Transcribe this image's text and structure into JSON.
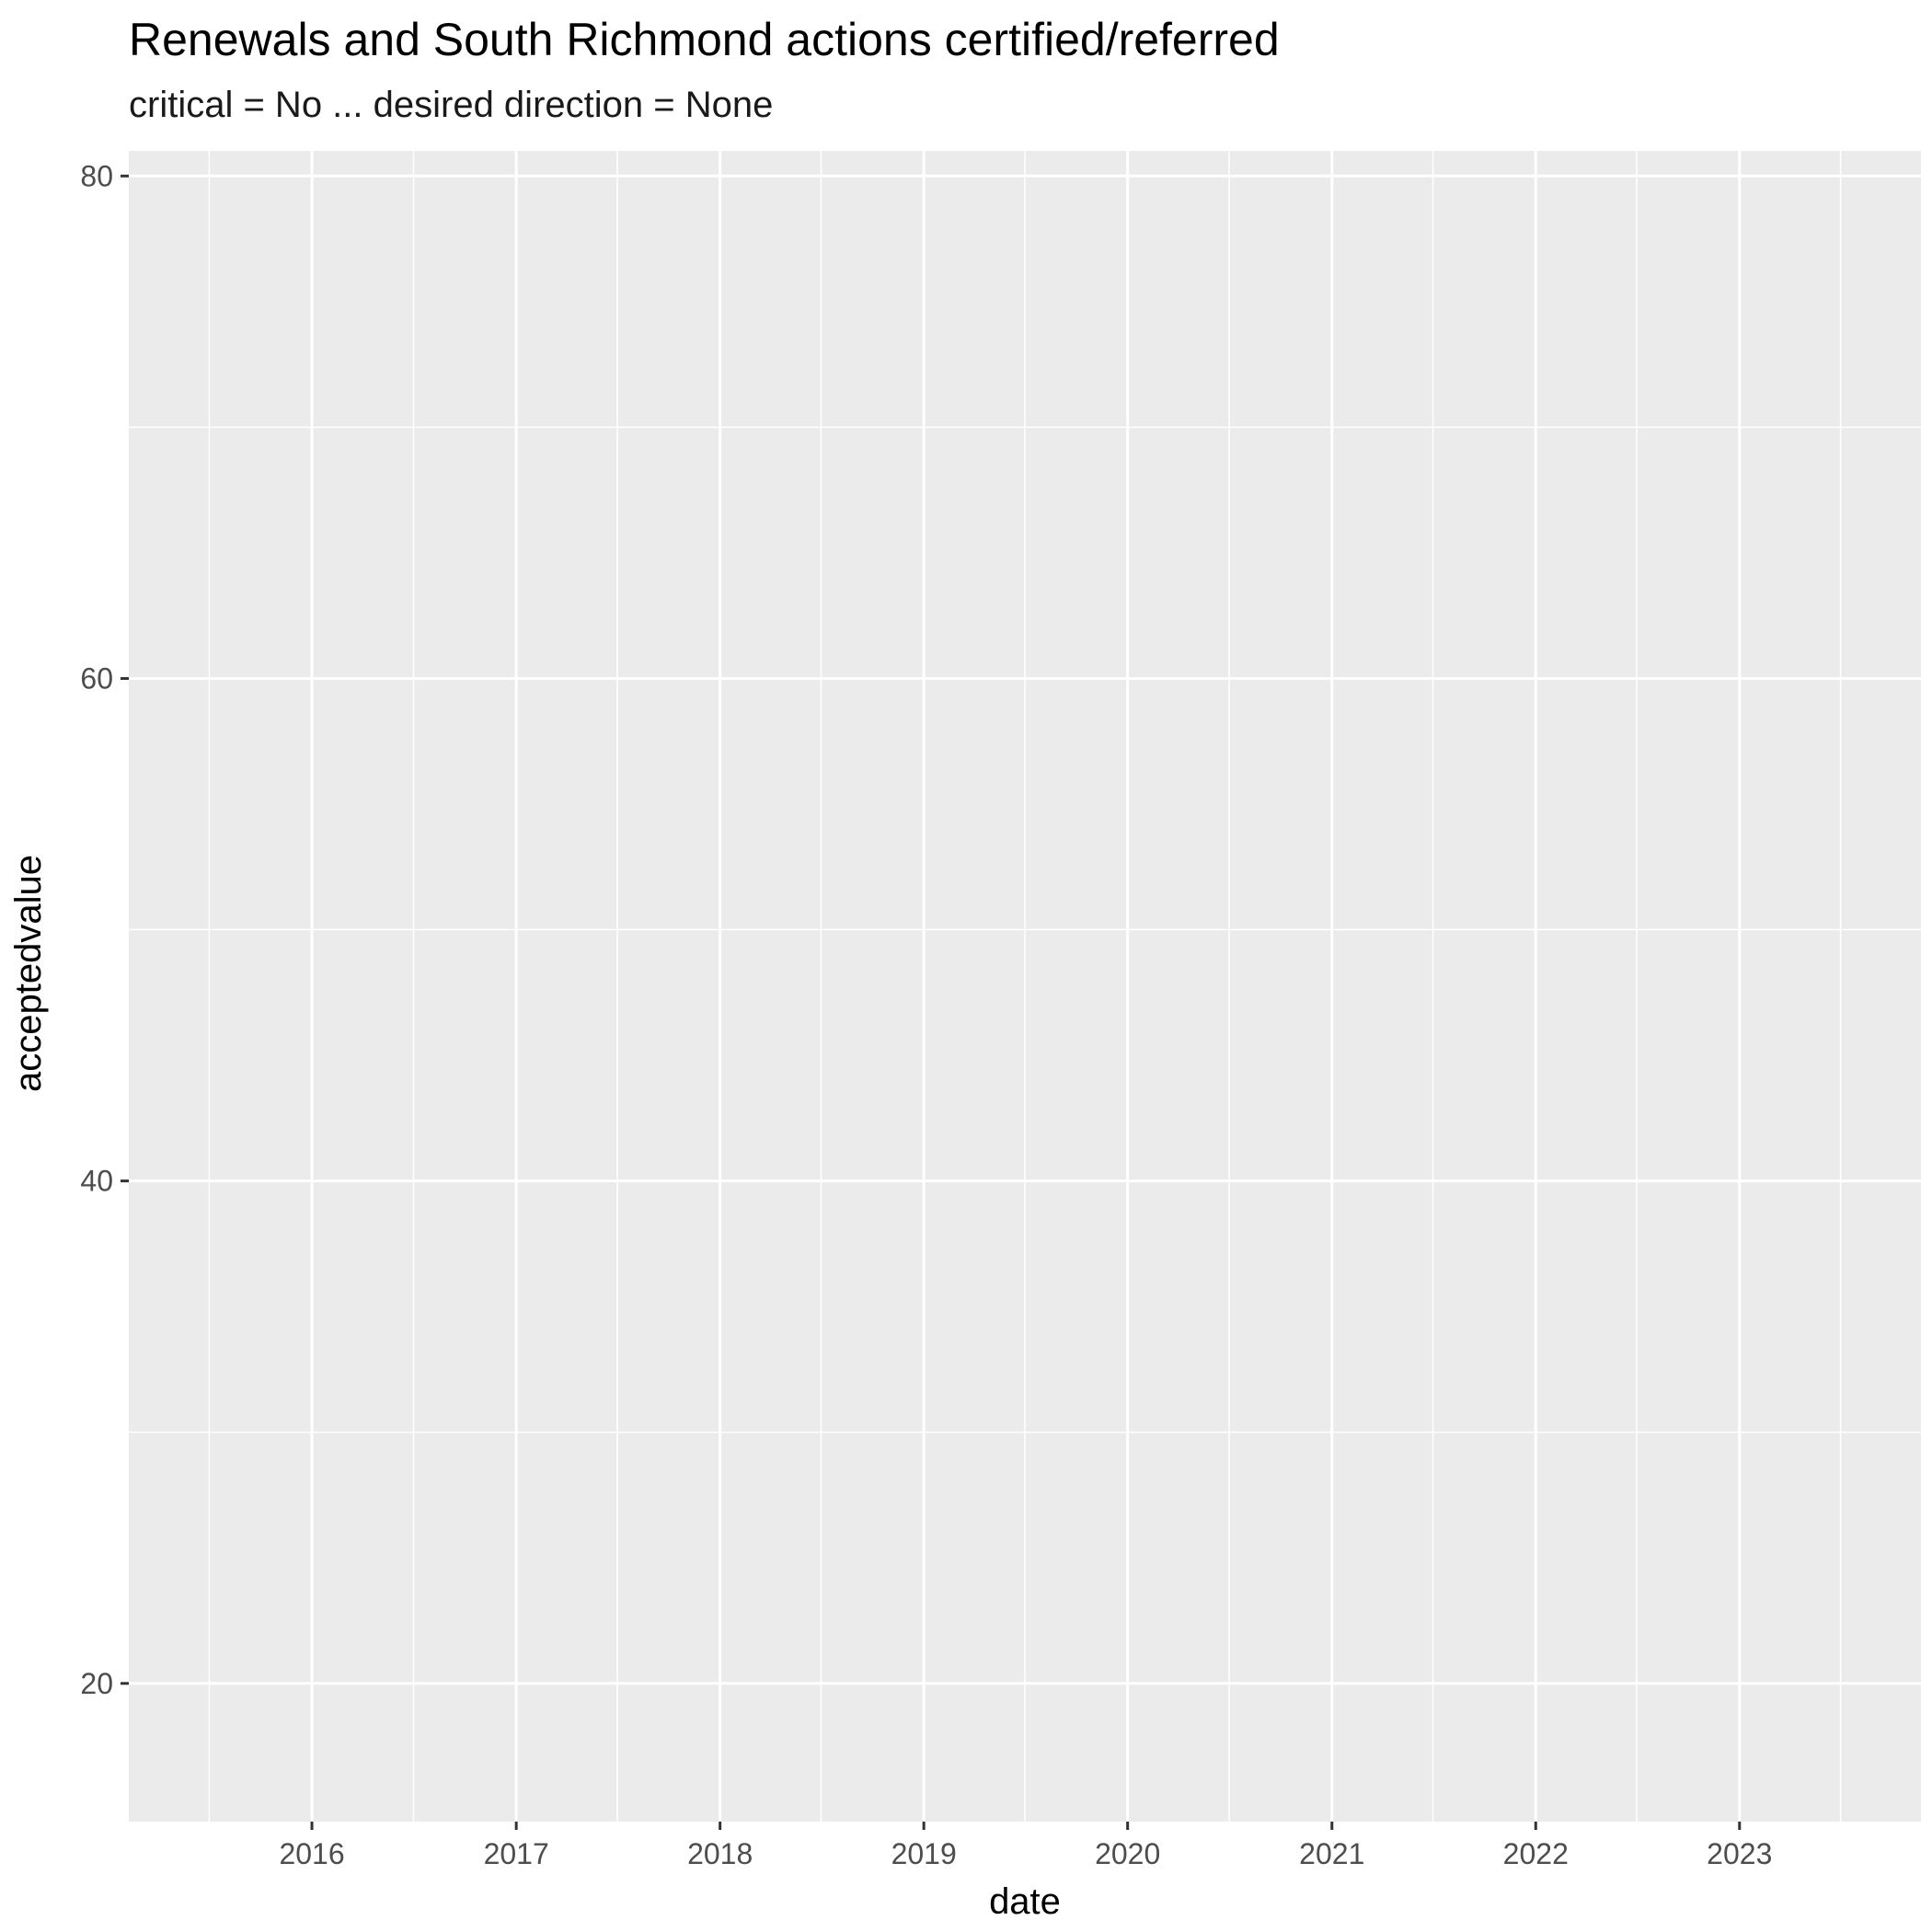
{
  "chart_data": {
    "type": "scatter",
    "title": "Renewals and South Richmond actions certified/referred",
    "subtitle": "critical = No ... desired direction = None",
    "xlabel": "date",
    "ylabel": "acceptedvalue",
    "x_ticks": [
      "2016",
      "2017",
      "2018",
      "2019",
      "2020",
      "2021",
      "2022",
      "2023"
    ],
    "y_ticks": [
      20,
      40,
      60,
      80
    ],
    "xlim": [
      "2015-02-07",
      "2023-11-22"
    ],
    "ylim": [
      14.5,
      81
    ],
    "grid": true,
    "series": [],
    "colors": {
      "panel": "#ebebeb",
      "grid": "#ffffff",
      "tick_text": "#4d4d4d",
      "tick_mark": "#333333"
    }
  }
}
